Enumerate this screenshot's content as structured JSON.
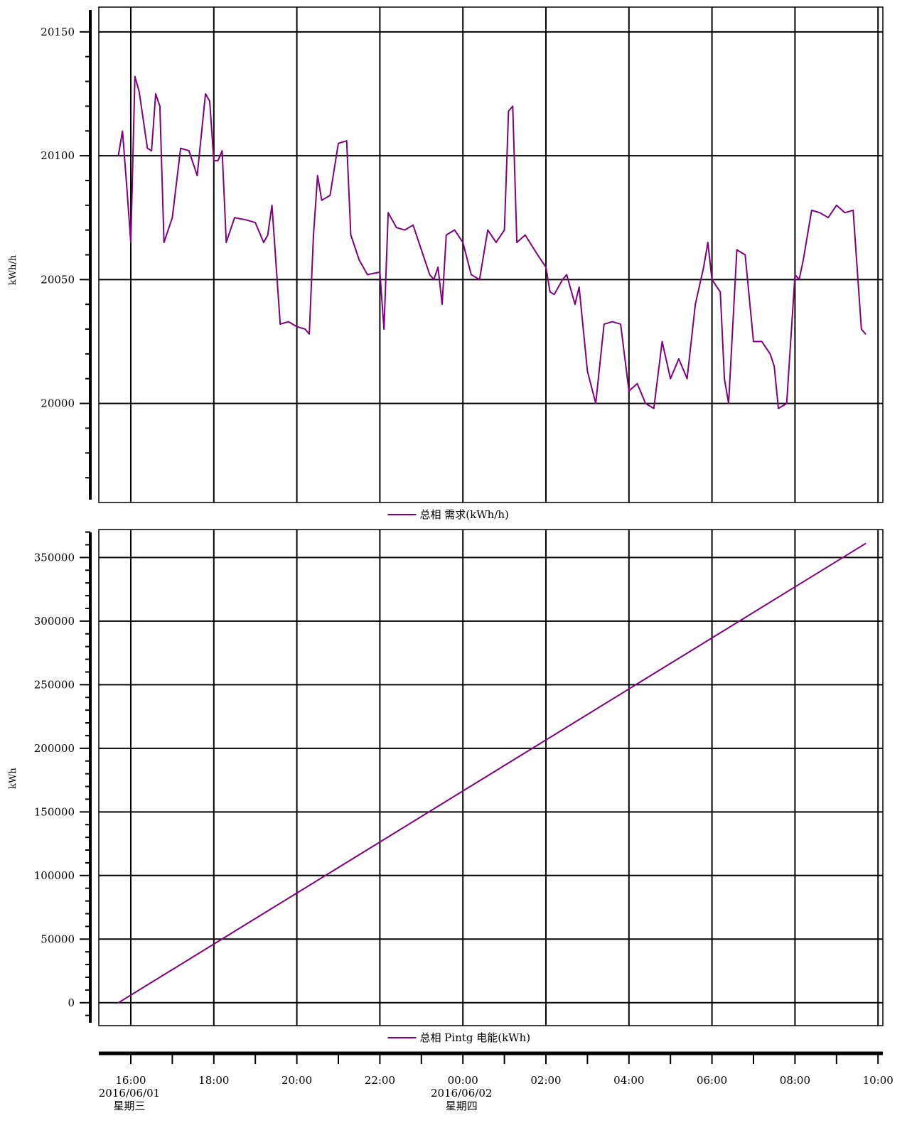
{
  "colors": {
    "series": "#800080",
    "grid": "#000000",
    "background": "#ffffff"
  },
  "time_axis": {
    "ticks": [
      "16:00",
      "18:00",
      "20:00",
      "22:00",
      "00:00",
      "02:00",
      "04:00",
      "06:00",
      "08:00",
      "10:00"
    ],
    "date_labels": [
      {
        "tick": "16:00",
        "date": "2016/06/01",
        "weekday": "星期三"
      },
      {
        "tick": "00:00",
        "date": "2016/06/02",
        "weekday": "星期四"
      }
    ]
  },
  "chart_data": [
    {
      "type": "line",
      "ylabel": "kWh/h",
      "ylim": [
        19960,
        20160
      ],
      "yticks": [
        20000,
        20050,
        20100,
        20150
      ],
      "grid": true,
      "legend": {
        "position": "bottom-center",
        "label": "总相 需求(kWh/h)"
      },
      "series": [
        {
          "name": "总相 需求(kWh/h)",
          "x_unit": "hours since 2016/06/01 00:00",
          "x": [
            15.7,
            15.8,
            15.9,
            16.0,
            16.1,
            16.2,
            16.4,
            16.5,
            16.6,
            16.7,
            16.8,
            17.0,
            17.2,
            17.4,
            17.6,
            17.8,
            17.9,
            18.0,
            18.1,
            18.2,
            18.3,
            18.5,
            18.8,
            19.0,
            19.2,
            19.3,
            19.4,
            19.6,
            19.8,
            20.0,
            20.2,
            20.3,
            20.4,
            20.5,
            20.6,
            20.8,
            21.0,
            21.2,
            21.3,
            21.5,
            21.7,
            22.0,
            22.1,
            22.2,
            22.3,
            22.4,
            22.6,
            22.8,
            23.0,
            23.2,
            23.3,
            23.4,
            23.5,
            23.6,
            23.8,
            24.0,
            24.2,
            24.4,
            24.6,
            24.8,
            25.0,
            25.1,
            25.2,
            25.3,
            25.5,
            25.8,
            26.0,
            26.1,
            26.2,
            26.4,
            26.5,
            26.7,
            26.8,
            27.0,
            27.2,
            27.4,
            27.6,
            27.8,
            28.0,
            28.2,
            28.4,
            28.6,
            28.8,
            29.0,
            29.2,
            29.4,
            29.6,
            29.8,
            29.9,
            30.0,
            30.2,
            30.3,
            30.4,
            30.6,
            30.8,
            31.0,
            31.2,
            31.4,
            31.5,
            31.6,
            31.7,
            31.8,
            32.0,
            32.1,
            32.2,
            32.4,
            32.6,
            32.8,
            33.0,
            33.2,
            33.4,
            33.6,
            33.7
          ],
          "y": [
            20100,
            20110,
            20088,
            20065,
            20132,
            20126,
            20103,
            20102,
            20125,
            20120,
            20065,
            20075,
            20103,
            20102,
            20092,
            20125,
            20122,
            20098,
            20098,
            20102,
            20065,
            20075,
            20074,
            20073,
            20065,
            20068,
            20080,
            20032,
            20033,
            20031,
            20030,
            20028,
            20068,
            20092,
            20082,
            20084,
            20105,
            20106,
            20068,
            20058,
            20052,
            20053,
            20030,
            20077,
            20074,
            20071,
            20070,
            20072,
            20062,
            20052,
            20050,
            20055,
            20040,
            20068,
            20070,
            20065,
            20052,
            20050,
            20070,
            20065,
            20070,
            20118,
            20120,
            20065,
            20068,
            20060,
            20055,
            20045,
            20044,
            20050,
            20052,
            20040,
            20047,
            20013,
            20000,
            20032,
            20033,
            20032,
            20005,
            20008,
            20000,
            19998,
            20025,
            20010,
            20018,
            20010,
            20040,
            20055,
            20065,
            20050,
            20045,
            20010,
            20000,
            20062,
            20060,
            20025,
            20025,
            20020,
            20015,
            19998,
            19999,
            20000,
            20052,
            20050,
            20058,
            20078,
            20077,
            20075,
            20080,
            20077,
            20078,
            20030,
            20028
          ]
        }
      ]
    },
    {
      "type": "line",
      "ylabel": "kWh",
      "ylim": [
        -18000,
        372000
      ],
      "yticks": [
        0,
        50000,
        100000,
        150000,
        200000,
        250000,
        300000,
        350000
      ],
      "grid": true,
      "legend": {
        "position": "bottom-center",
        "label": "总相 Pintg 电能(kWh)"
      },
      "series": [
        {
          "name": "总相 Pintg 电能(kWh)",
          "x_unit": "hours since 2016/06/01 00:00",
          "x": [
            15.7,
            33.7
          ],
          "y": [
            0,
            361000
          ]
        }
      ]
    }
  ]
}
